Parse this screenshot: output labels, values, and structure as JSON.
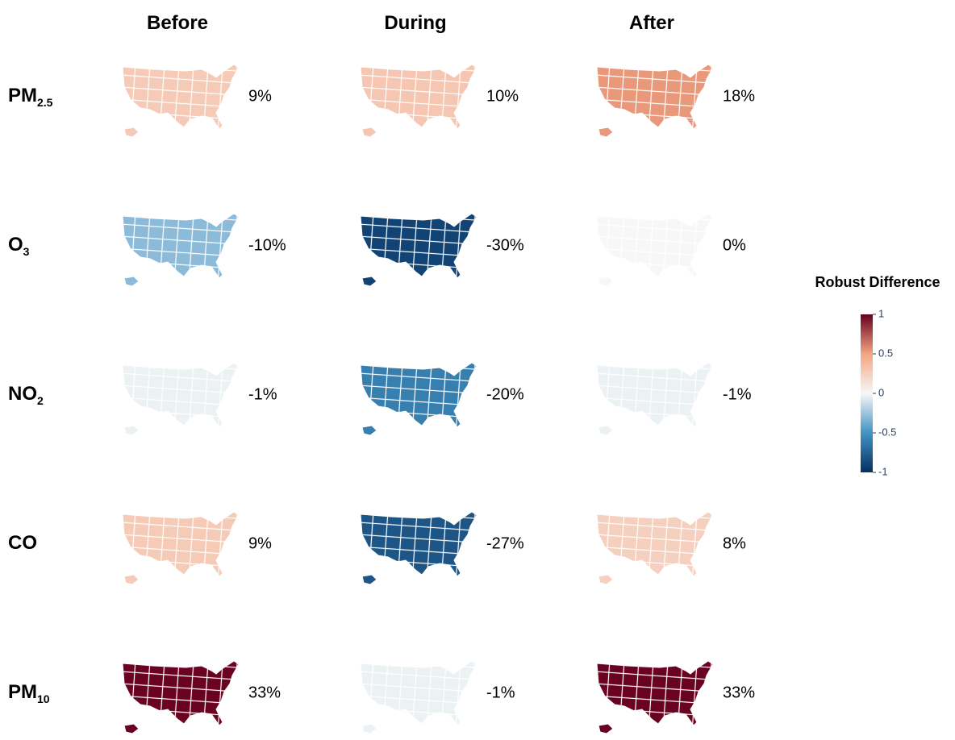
{
  "columns": [
    "Before",
    "During",
    "After"
  ],
  "rows": [
    {
      "label": {
        "main": "PM",
        "sub": "2.5"
      },
      "maps": [
        {
          "value": 9,
          "label": "9%"
        },
        {
          "value": 10,
          "label": "10%"
        },
        {
          "value": 18,
          "label": "18%"
        }
      ]
    },
    {
      "label": {
        "main": "O",
        "sub": "3"
      },
      "maps": [
        {
          "value": -10,
          "label": "-10%"
        },
        {
          "value": -30,
          "label": "-30%"
        },
        {
          "value": 0,
          "label": "0%"
        }
      ]
    },
    {
      "label": {
        "main": "NO",
        "sub": "2"
      },
      "maps": [
        {
          "value": -1,
          "label": "-1%"
        },
        {
          "value": -20,
          "label": "-20%"
        },
        {
          "value": -1,
          "label": "-1%"
        }
      ]
    },
    {
      "label": {
        "main": "CO",
        "sub": null
      },
      "maps": [
        {
          "value": 9,
          "label": "9%"
        },
        {
          "value": -27,
          "label": "-27%"
        },
        {
          "value": 8,
          "label": "8%"
        }
      ]
    },
    {
      "label": {
        "main": "PM",
        "sub": "10"
      },
      "maps": [
        {
          "value": 33,
          "label": "33%"
        },
        {
          "value": -1,
          "label": "-1%"
        },
        {
          "value": 33,
          "label": "33%"
        }
      ]
    }
  ],
  "colorbar": {
    "title": "Robust Difference",
    "range": [
      -1,
      1
    ],
    "ticks": [
      1,
      0.5,
      0,
      -0.5,
      -1
    ],
    "colors": [
      "#053061",
      "#4393c3",
      "#f7f7f7",
      "#f4a582",
      "#67001f"
    ]
  }
}
